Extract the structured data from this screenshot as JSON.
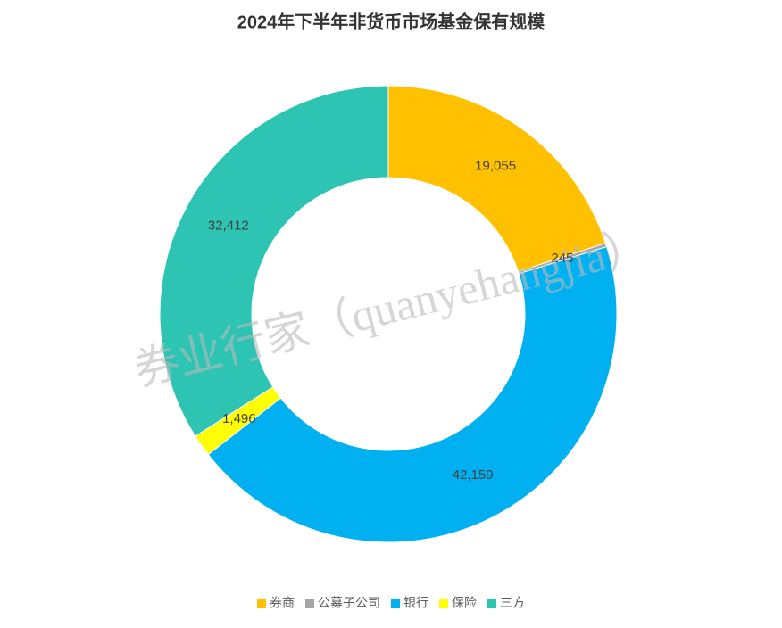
{
  "chart_data": {
    "type": "donut",
    "title": "2024年下半年非货币市场基金保有规模",
    "watermark": "券业行家（quanyehangjia）",
    "categories": [
      "券商",
      "公募子公司",
      "银行",
      "保险",
      "三方"
    ],
    "values": [
      19055,
      245,
      42159,
      1496,
      32412
    ],
    "value_labels": [
      "19,055",
      "245",
      "42,159",
      "1,496",
      "32,412"
    ],
    "colors": [
      "#FFC000",
      "#A5A5A5",
      "#00B0F0",
      "#FFFF00",
      "#2EC4B4"
    ],
    "legend": "bottom"
  }
}
